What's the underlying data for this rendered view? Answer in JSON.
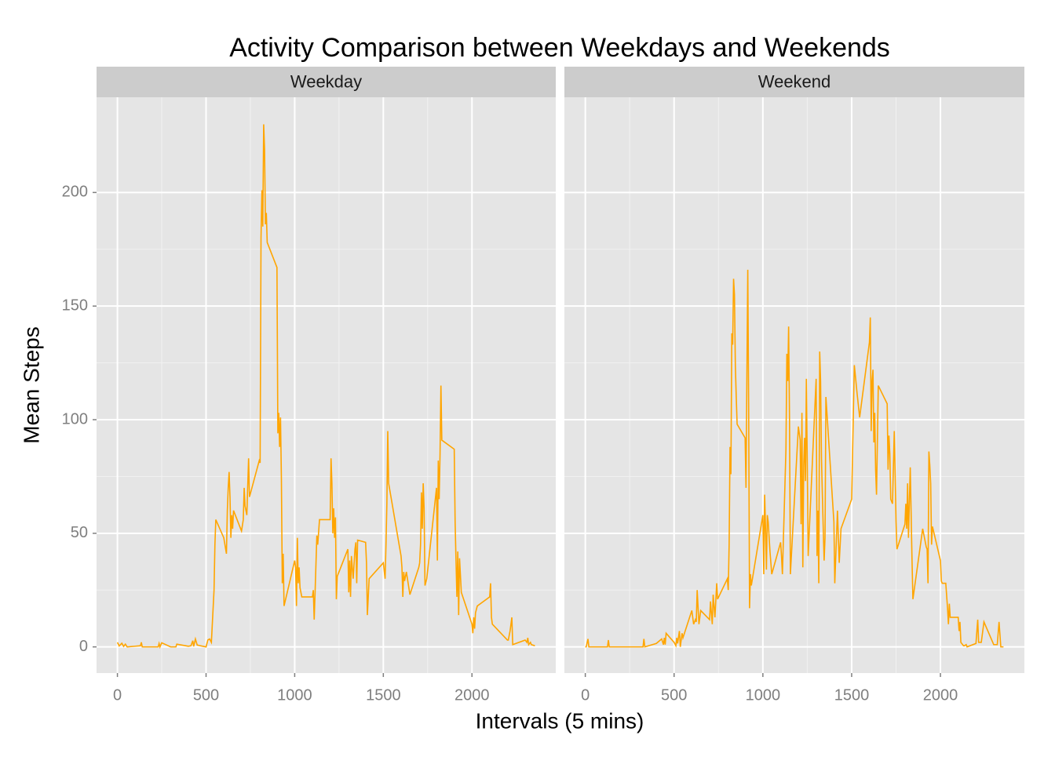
{
  "chart_data": {
    "type": "line",
    "title": "Activity Comparison between Weekdays and Weekends",
    "x_label": "Intervals (5 mins)",
    "y_label": "Mean Steps",
    "xlim": [
      -117.75,
      2472.75
    ],
    "ylim": [
      -11.52,
      241.9
    ],
    "xticks": [
      0,
      500,
      1000,
      1500,
      2000
    ],
    "yticks": [
      0,
      50,
      100,
      150,
      200
    ],
    "grid": true,
    "color": "#FFA500",
    "series": [
      {
        "name": "Weekday",
        "color": "#FFA500",
        "x": [
          0,
          10,
          25,
          35,
          45,
          55,
          100,
          130,
          135,
          140,
          200,
          230,
          235,
          240,
          250,
          300,
          330,
          335,
          400,
          415,
          425,
          430,
          440,
          450,
          500,
          510,
          520,
          530,
          545,
          550,
          555,
          600,
          615,
          620,
          625,
          630,
          635,
          640,
          645,
          650,
          655,
          700,
          710,
          715,
          720,
          730,
          740,
          745,
          800,
          805,
          810,
          815,
          820,
          825,
          830,
          835,
          840,
          845,
          900,
          905,
          910,
          915,
          920,
          925,
          930,
          935,
          940,
          1000,
          1005,
          1010,
          1015,
          1020,
          1025,
          1030,
          1040,
          1100,
          1105,
          1110,
          1115,
          1125,
          1130,
          1140,
          1200,
          1205,
          1210,
          1215,
          1220,
          1225,
          1230,
          1235,
          1240,
          1300,
          1305,
          1310,
          1315,
          1320,
          1330,
          1340,
          1345,
          1350,
          1355,
          1400,
          1405,
          1410,
          1420,
          1500,
          1510,
          1515,
          1520,
          1525,
          1530,
          1600,
          1605,
          1610,
          1615,
          1620,
          1630,
          1650,
          1700,
          1705,
          1710,
          1715,
          1720,
          1725,
          1730,
          1735,
          1745,
          1800,
          1805,
          1810,
          1815,
          1820,
          1825,
          1830,
          1900,
          1905,
          1910,
          1915,
          1920,
          1925,
          1930,
          1940,
          2000,
          2005,
          2010,
          2015,
          2020,
          2030,
          2100,
          2105,
          2110,
          2115,
          2200,
          2205,
          2215,
          2220,
          2225,
          2230,
          2300,
          2310,
          2315,
          2320,
          2330,
          2335,
          2355
        ],
        "values": [
          2,
          0.4,
          1.6,
          0.2,
          1.2,
          0,
          0.3,
          0.5,
          2,
          0,
          0,
          0,
          1.5,
          0,
          1.8,
          0,
          0,
          1.2,
          0.3,
          0.5,
          2.7,
          0.2,
          3.5,
          0.8,
          0,
          3,
          3.5,
          2,
          25,
          45,
          56,
          48,
          41,
          60,
          70,
          77,
          66,
          48,
          58,
          52,
          60,
          51,
          56,
          70,
          62,
          58,
          83,
          66,
          82,
          81,
          180,
          201,
          185,
          230,
          219,
          186,
          191,
          178,
          167,
          94,
          103,
          88,
          101,
          74,
          28,
          41,
          18,
          38,
          35,
          18,
          48,
          28,
          35,
          26,
          22,
          22,
          25,
          12,
          24,
          49,
          45,
          56,
          56,
          83,
          72,
          50,
          61,
          48,
          57,
          21,
          31,
          43,
          24,
          38,
          22,
          40,
          30,
          43,
          46,
          28,
          47,
          46,
          37,
          14,
          30,
          37,
          30,
          45,
          63,
          95,
          72,
          40,
          35,
          22,
          33,
          29,
          33,
          23,
          35,
          37,
          45,
          68,
          52,
          72,
          61,
          27,
          30,
          70,
          38,
          82,
          65,
          85,
          115,
          91,
          87,
          55,
          38,
          22,
          42,
          14,
          39,
          24,
          10,
          6,
          13,
          8,
          15,
          18,
          22,
          28,
          13,
          10,
          3,
          3,
          7,
          10,
          13,
          1,
          3,
          2,
          4,
          1,
          2,
          1,
          0.5
        ]
      },
      {
        "name": "Weekend",
        "color": "#FFA500",
        "x": [
          0,
          5,
          15,
          20,
          125,
          130,
          135,
          300,
          325,
          330,
          335,
          400,
          430,
          440,
          445,
          450,
          455,
          500,
          510,
          515,
          520,
          530,
          535,
          545,
          550,
          600,
          610,
          620,
          625,
          630,
          640,
          650,
          700,
          705,
          715,
          720,
          730,
          740,
          745,
          800,
          805,
          810,
          815,
          820,
          825,
          830,
          835,
          840,
          845,
          850,
          855,
          900,
          905,
          910,
          915,
          920,
          925,
          930,
          935,
          1000,
          1005,
          1010,
          1015,
          1020,
          1025,
          1030,
          1040,
          1050,
          1100,
          1105,
          1110,
          1130,
          1135,
          1140,
          1145,
          1150,
          1155,
          1200,
          1210,
          1215,
          1220,
          1225,
          1230,
          1235,
          1240,
          1245,
          1250,
          1255,
          1300,
          1305,
          1310,
          1315,
          1320,
          1325,
          1330,
          1335,
          1340,
          1345,
          1350,
          1355,
          1400,
          1405,
          1420,
          1430,
          1440,
          1500,
          1515,
          1530,
          1545,
          1600,
          1605,
          1610,
          1615,
          1620,
          1625,
          1630,
          1635,
          1640,
          1650,
          1700,
          1705,
          1710,
          1715,
          1720,
          1730,
          1740,
          1745,
          1750,
          1755,
          1800,
          1805,
          1810,
          1815,
          1820,
          1830,
          1840,
          1845,
          1900,
          1910,
          1920,
          1925,
          1930,
          1935,
          1940,
          1945,
          1950,
          1955,
          2000,
          2005,
          2010,
          2030,
          2040,
          2045,
          2050,
          2055,
          2100,
          2105,
          2110,
          2115,
          2130,
          2135,
          2145,
          2150,
          2200,
          2210,
          2215,
          2230,
          2245,
          2300,
          2320,
          2330,
          2340,
          2355
        ],
        "values": [
          0,
          0,
          3.5,
          0,
          0,
          3,
          0,
          0,
          0,
          3.5,
          0,
          1.5,
          3.5,
          1,
          4,
          1,
          6,
          2,
          0.5,
          4,
          1.5,
          7,
          0,
          6,
          4,
          16,
          10,
          12,
          11,
          25,
          10,
          16,
          12,
          20,
          10,
          23,
          13,
          28,
          21,
          30,
          25,
          45,
          88,
          76,
          138,
          133,
          162,
          155,
          124,
          110,
          98,
          92,
          70,
          120,
          166,
          105,
          17,
          32,
          27,
          58,
          32,
          67,
          52,
          34,
          58,
          55,
          42,
          32,
          46,
          40,
          32,
          87,
          129,
          117,
          141,
          100,
          32,
          97,
          91,
          54,
          103,
          35,
          80,
          92,
          73,
          118,
          81,
          40,
          118,
          40,
          60,
          28,
          130,
          117,
          83,
          67,
          52,
          38,
          48,
          110,
          55,
          28,
          60,
          37,
          52,
          65,
          124,
          112,
          101,
          134,
          145,
          95,
          117,
          122,
          90,
          103,
          78,
          67,
          115,
          107,
          78,
          93,
          85,
          65,
          63,
          95,
          76,
          55,
          43,
          54,
          63,
          52,
          72,
          48,
          79,
          38,
          21,
          52,
          48,
          44,
          43,
          28,
          86,
          80,
          72,
          45,
          53,
          38,
          29,
          28,
          28,
          17,
          10,
          19,
          13,
          13,
          7,
          11,
          2,
          0.5,
          0.5,
          1,
          0,
          1.5,
          12,
          2,
          2,
          11,
          1,
          1,
          11,
          0,
          0
        ]
      }
    ]
  }
}
